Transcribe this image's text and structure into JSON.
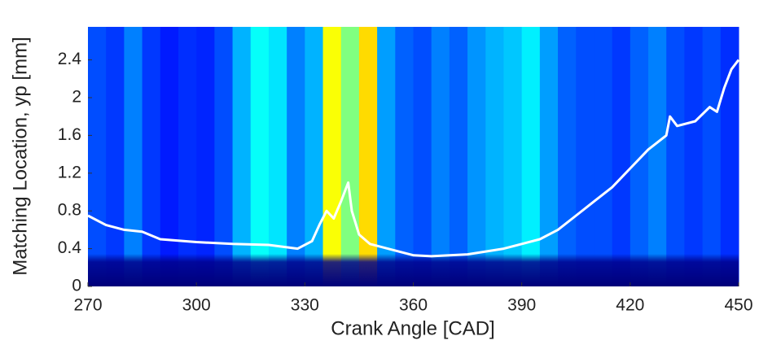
{
  "chart_data": {
    "type": "heatmap-line",
    "xlabel": "Crank Angle [CAD]",
    "ylabel": "Matching Location, yp [mm]",
    "xlim": [
      270,
      450
    ],
    "ylim": [
      0,
      2.75
    ],
    "xticks": [
      270,
      300,
      330,
      360,
      390,
      420,
      450
    ],
    "yticks": [
      0,
      0.4,
      0.8,
      1.2,
      1.6,
      2,
      2.4
    ],
    "heatmap": {
      "bins": [
        270,
        275,
        280,
        285,
        290,
        295,
        300,
        305,
        310,
        315,
        320,
        325,
        330,
        335,
        340,
        345,
        350,
        355,
        360,
        365,
        370,
        375,
        380,
        385,
        390,
        395,
        400,
        405,
        410,
        415,
        420,
        425,
        430,
        435,
        440,
        445,
        450
      ],
      "values": [
        0.2,
        0.18,
        0.25,
        0.18,
        0.15,
        0.17,
        0.16,
        0.2,
        0.3,
        0.38,
        0.35,
        0.25,
        0.3,
        0.62,
        0.5,
        0.66,
        0.28,
        0.22,
        0.2,
        0.25,
        0.22,
        0.27,
        0.3,
        0.32,
        0.36,
        0.28,
        0.22,
        0.2,
        0.2,
        0.18,
        0.22,
        0.25,
        0.2,
        0.18,
        0.2,
        0.17
      ]
    },
    "series": [
      {
        "name": "matching location",
        "color": "#ffffff",
        "x": [
          270,
          275,
          280,
          285,
          290,
          300,
          310,
          320,
          328,
          332,
          334,
          336,
          338,
          340,
          342,
          343,
          345,
          348,
          355,
          360,
          365,
          375,
          385,
          390,
          395,
          400,
          405,
          410,
          415,
          420,
          425,
          430,
          431,
          433,
          438,
          442,
          444,
          446,
          448,
          450
        ],
        "values": [
          0.75,
          0.65,
          0.6,
          0.58,
          0.5,
          0.47,
          0.45,
          0.44,
          0.4,
          0.48,
          0.65,
          0.8,
          0.72,
          0.9,
          1.1,
          0.8,
          0.55,
          0.45,
          0.38,
          0.33,
          0.32,
          0.34,
          0.4,
          0.45,
          0.5,
          0.6,
          0.75,
          0.9,
          1.05,
          1.25,
          1.45,
          1.6,
          1.8,
          1.7,
          1.75,
          1.9,
          1.85,
          2.1,
          2.3,
          2.4
        ]
      }
    ]
  }
}
